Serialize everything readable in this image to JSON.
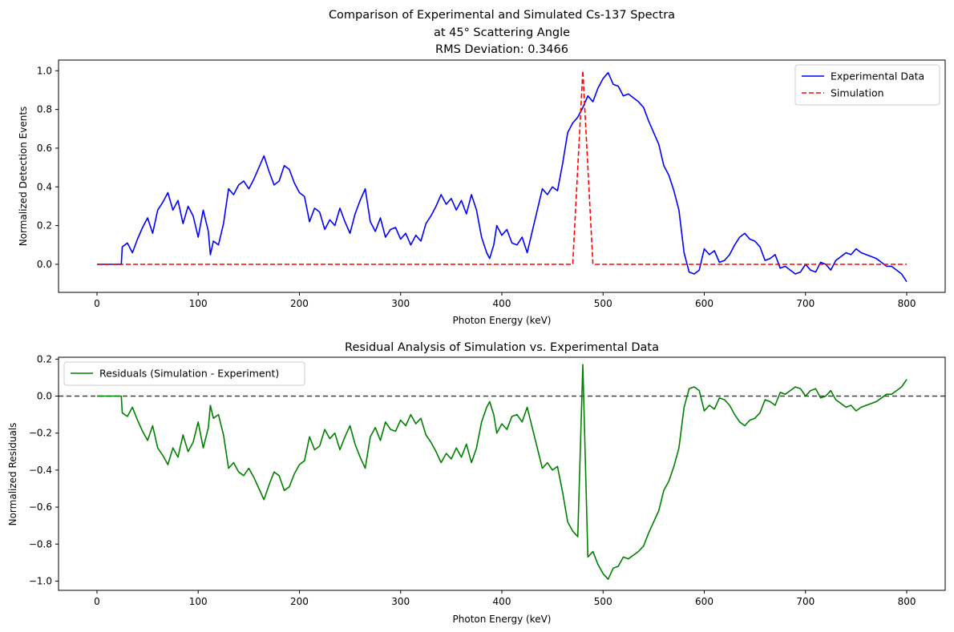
{
  "figure": {
    "background": "#ffffff"
  },
  "chart_data": [
    {
      "type": "line",
      "title_lines": [
        "Comparison of Experimental and Simulated Cs-137 Spectra",
        "at 45° Scattering Angle",
        "RMS Deviation: 0.3466"
      ],
      "xlabel": "Photon Energy (keV)",
      "ylabel": "Normalized Detection Events",
      "xlim": [
        -38,
        838
      ],
      "ylim": [
        -0.145,
        1.055
      ],
      "xticks": [
        0,
        100,
        200,
        300,
        400,
        500,
        600,
        700,
        800
      ],
      "yticks": [
        0.0,
        0.2,
        0.4,
        0.6,
        0.8,
        1.0
      ],
      "ytick_labels": [
        "0.0",
        "0.2",
        "0.4",
        "0.6",
        "0.8",
        "1.0"
      ],
      "grid": false,
      "legend_position": "upper right",
      "series": [
        {
          "name": "Experimental Data",
          "color": "#0000ff",
          "style": "solid",
          "x": [
            0,
            24,
            25,
            30,
            35,
            40,
            45,
            50,
            55,
            60,
            65,
            70,
            75,
            80,
            85,
            90,
            95,
            100,
            105,
            110,
            112,
            115,
            120,
            125,
            130,
            135,
            140,
            145,
            150,
            155,
            160,
            165,
            170,
            175,
            180,
            185,
            190,
            195,
            200,
            205,
            210,
            215,
            220,
            225,
            230,
            235,
            240,
            245,
            250,
            255,
            260,
            265,
            270,
            275,
            280,
            285,
            290,
            295,
            300,
            305,
            310,
            315,
            320,
            325,
            330,
            335,
            340,
            345,
            350,
            355,
            360,
            365,
            370,
            375,
            380,
            385,
            388,
            392,
            395,
            400,
            405,
            410,
            415,
            420,
            425,
            430,
            435,
            440,
            445,
            450,
            455,
            460,
            465,
            470,
            475,
            480,
            485,
            490,
            495,
            500,
            505,
            510,
            515,
            520,
            525,
            530,
            535,
            540,
            545,
            550,
            555,
            560,
            565,
            570,
            575,
            580,
            585,
            590,
            595,
            600,
            605,
            610,
            615,
            620,
            625,
            630,
            635,
            640,
            645,
            650,
            655,
            660,
            665,
            670,
            675,
            680,
            685,
            690,
            695,
            700,
            705,
            710,
            715,
            720,
            725,
            730,
            735,
            740,
            745,
            750,
            755,
            760,
            765,
            770,
            775,
            780,
            785,
            790,
            795,
            800
          ],
          "y": [
            0.0,
            0.0,
            0.09,
            0.11,
            0.06,
            0.13,
            0.19,
            0.24,
            0.16,
            0.28,
            0.32,
            0.37,
            0.28,
            0.33,
            0.21,
            0.3,
            0.25,
            0.14,
            0.28,
            0.17,
            0.05,
            0.12,
            0.1,
            0.21,
            0.39,
            0.36,
            0.41,
            0.43,
            0.39,
            0.44,
            0.5,
            0.56,
            0.48,
            0.41,
            0.43,
            0.51,
            0.49,
            0.42,
            0.37,
            0.35,
            0.22,
            0.29,
            0.27,
            0.18,
            0.23,
            0.2,
            0.29,
            0.22,
            0.16,
            0.26,
            0.33,
            0.39,
            0.22,
            0.17,
            0.24,
            0.14,
            0.18,
            0.19,
            0.13,
            0.16,
            0.1,
            0.15,
            0.12,
            0.21,
            0.25,
            0.3,
            0.36,
            0.31,
            0.34,
            0.28,
            0.33,
            0.26,
            0.36,
            0.28,
            0.14,
            0.06,
            0.03,
            0.1,
            0.2,
            0.15,
            0.18,
            0.11,
            0.1,
            0.14,
            0.06,
            0.17,
            0.28,
            0.39,
            0.36,
            0.4,
            0.38,
            0.52,
            0.68,
            0.73,
            0.76,
            0.81,
            0.87,
            0.84,
            0.91,
            0.96,
            0.99,
            0.93,
            0.92,
            0.87,
            0.88,
            0.86,
            0.84,
            0.81,
            0.74,
            0.68,
            0.62,
            0.51,
            0.46,
            0.38,
            0.28,
            0.06,
            -0.04,
            -0.05,
            -0.03,
            0.08,
            0.05,
            0.07,
            0.01,
            0.02,
            0.05,
            0.1,
            0.14,
            0.16,
            0.13,
            0.12,
            0.09,
            0.02,
            0.03,
            0.05,
            -0.02,
            -0.01,
            -0.03,
            -0.05,
            -0.04,
            0.0,
            -0.03,
            -0.04,
            0.01,
            0.0,
            -0.03,
            0.02,
            0.04,
            0.06,
            0.05,
            0.08,
            0.06,
            0.05,
            0.04,
            0.03,
            0.01,
            -0.01,
            -0.01,
            -0.03,
            -0.05,
            -0.09
          ]
        },
        {
          "name": "Simulation",
          "color": "#ff0000",
          "style": "dashed",
          "x": [
            0,
            470,
            480,
            490,
            800
          ],
          "y": [
            0.0,
            0.0,
            1.0,
            0.0,
            0.0
          ]
        }
      ]
    },
    {
      "type": "line",
      "title": "Residual Analysis of Simulation vs. Experimental Data",
      "xlabel": "Photon Energy (keV)",
      "ylabel": "Normalized Residuals",
      "xlim": [
        -38,
        838
      ],
      "ylim": [
        -1.05,
        0.21
      ],
      "xticks": [
        0,
        100,
        200,
        300,
        400,
        500,
        600,
        700,
        800
      ],
      "yticks": [
        -1.0,
        -0.8,
        -0.6,
        -0.4,
        -0.2,
        0.0,
        0.2
      ],
      "ytick_labels": [
        "−1.0",
        "−0.8",
        "−0.6",
        "−0.4",
        "−0.2",
        "0.0",
        "0.2"
      ],
      "grid": false,
      "legend_position": "upper left",
      "reference_line": {
        "y": 0.0,
        "color": "#000000",
        "style": "dashed"
      },
      "series": [
        {
          "name": "Residuals (Simulation - Experiment)",
          "color": "#008000",
          "style": "solid",
          "x": [
            0,
            24,
            25,
            30,
            35,
            40,
            45,
            50,
            55,
            60,
            65,
            70,
            75,
            80,
            85,
            90,
            95,
            100,
            105,
            110,
            112,
            115,
            120,
            125,
            130,
            135,
            140,
            145,
            150,
            155,
            160,
            165,
            170,
            175,
            180,
            185,
            190,
            195,
            200,
            205,
            210,
            215,
            220,
            225,
            230,
            235,
            240,
            245,
            250,
            255,
            260,
            265,
            270,
            275,
            280,
            285,
            290,
            295,
            300,
            305,
            310,
            315,
            320,
            325,
            330,
            335,
            340,
            345,
            350,
            355,
            360,
            365,
            370,
            375,
            380,
            385,
            388,
            392,
            395,
            400,
            405,
            410,
            415,
            420,
            425,
            430,
            435,
            440,
            445,
            450,
            455,
            460,
            465,
            470,
            475,
            480,
            485,
            490,
            495,
            500,
            505,
            510,
            515,
            520,
            525,
            530,
            535,
            540,
            545,
            550,
            555,
            560,
            565,
            570,
            575,
            580,
            585,
            590,
            595,
            600,
            605,
            610,
            615,
            620,
            625,
            630,
            635,
            640,
            645,
            650,
            655,
            660,
            665,
            670,
            675,
            680,
            685,
            690,
            695,
            700,
            705,
            710,
            715,
            720,
            725,
            730,
            735,
            740,
            745,
            750,
            755,
            760,
            765,
            770,
            775,
            780,
            785,
            790,
            795,
            800
          ],
          "y": [
            0.0,
            0.0,
            -0.09,
            -0.11,
            -0.06,
            -0.13,
            -0.19,
            -0.24,
            -0.16,
            -0.28,
            -0.32,
            -0.37,
            -0.28,
            -0.33,
            -0.21,
            -0.3,
            -0.25,
            -0.14,
            -0.28,
            -0.17,
            -0.05,
            -0.12,
            -0.1,
            -0.21,
            -0.39,
            -0.36,
            -0.41,
            -0.43,
            -0.39,
            -0.44,
            -0.5,
            -0.56,
            -0.48,
            -0.41,
            -0.43,
            -0.51,
            -0.49,
            -0.42,
            -0.37,
            -0.35,
            -0.22,
            -0.29,
            -0.27,
            -0.18,
            -0.23,
            -0.2,
            -0.29,
            -0.22,
            -0.16,
            -0.26,
            -0.33,
            -0.39,
            -0.22,
            -0.17,
            -0.24,
            -0.14,
            -0.18,
            -0.19,
            -0.13,
            -0.16,
            -0.1,
            -0.15,
            -0.12,
            -0.21,
            -0.25,
            -0.3,
            -0.36,
            -0.31,
            -0.34,
            -0.28,
            -0.33,
            -0.26,
            -0.36,
            -0.28,
            -0.14,
            -0.06,
            -0.03,
            -0.1,
            -0.2,
            -0.15,
            -0.18,
            -0.11,
            -0.1,
            -0.14,
            -0.06,
            -0.17,
            -0.28,
            -0.39,
            -0.36,
            -0.4,
            -0.38,
            -0.52,
            -0.68,
            -0.73,
            -0.76,
            0.17,
            -0.87,
            -0.84,
            -0.91,
            -0.96,
            -0.99,
            -0.93,
            -0.92,
            -0.87,
            -0.88,
            -0.86,
            -0.84,
            -0.81,
            -0.74,
            -0.68,
            -0.62,
            -0.51,
            -0.46,
            -0.38,
            -0.28,
            -0.06,
            0.04,
            0.05,
            0.03,
            -0.08,
            -0.05,
            -0.07,
            -0.01,
            -0.02,
            -0.05,
            -0.1,
            -0.14,
            -0.16,
            -0.13,
            -0.12,
            -0.09,
            -0.02,
            -0.03,
            -0.05,
            0.02,
            0.01,
            0.03,
            0.05,
            0.04,
            0.0,
            0.03,
            0.04,
            -0.01,
            0.0,
            0.03,
            -0.02,
            -0.04,
            -0.06,
            -0.05,
            -0.08,
            -0.06,
            -0.05,
            -0.04,
            -0.03,
            -0.01,
            0.01,
            0.01,
            0.03,
            0.05,
            0.09
          ]
        }
      ]
    }
  ]
}
